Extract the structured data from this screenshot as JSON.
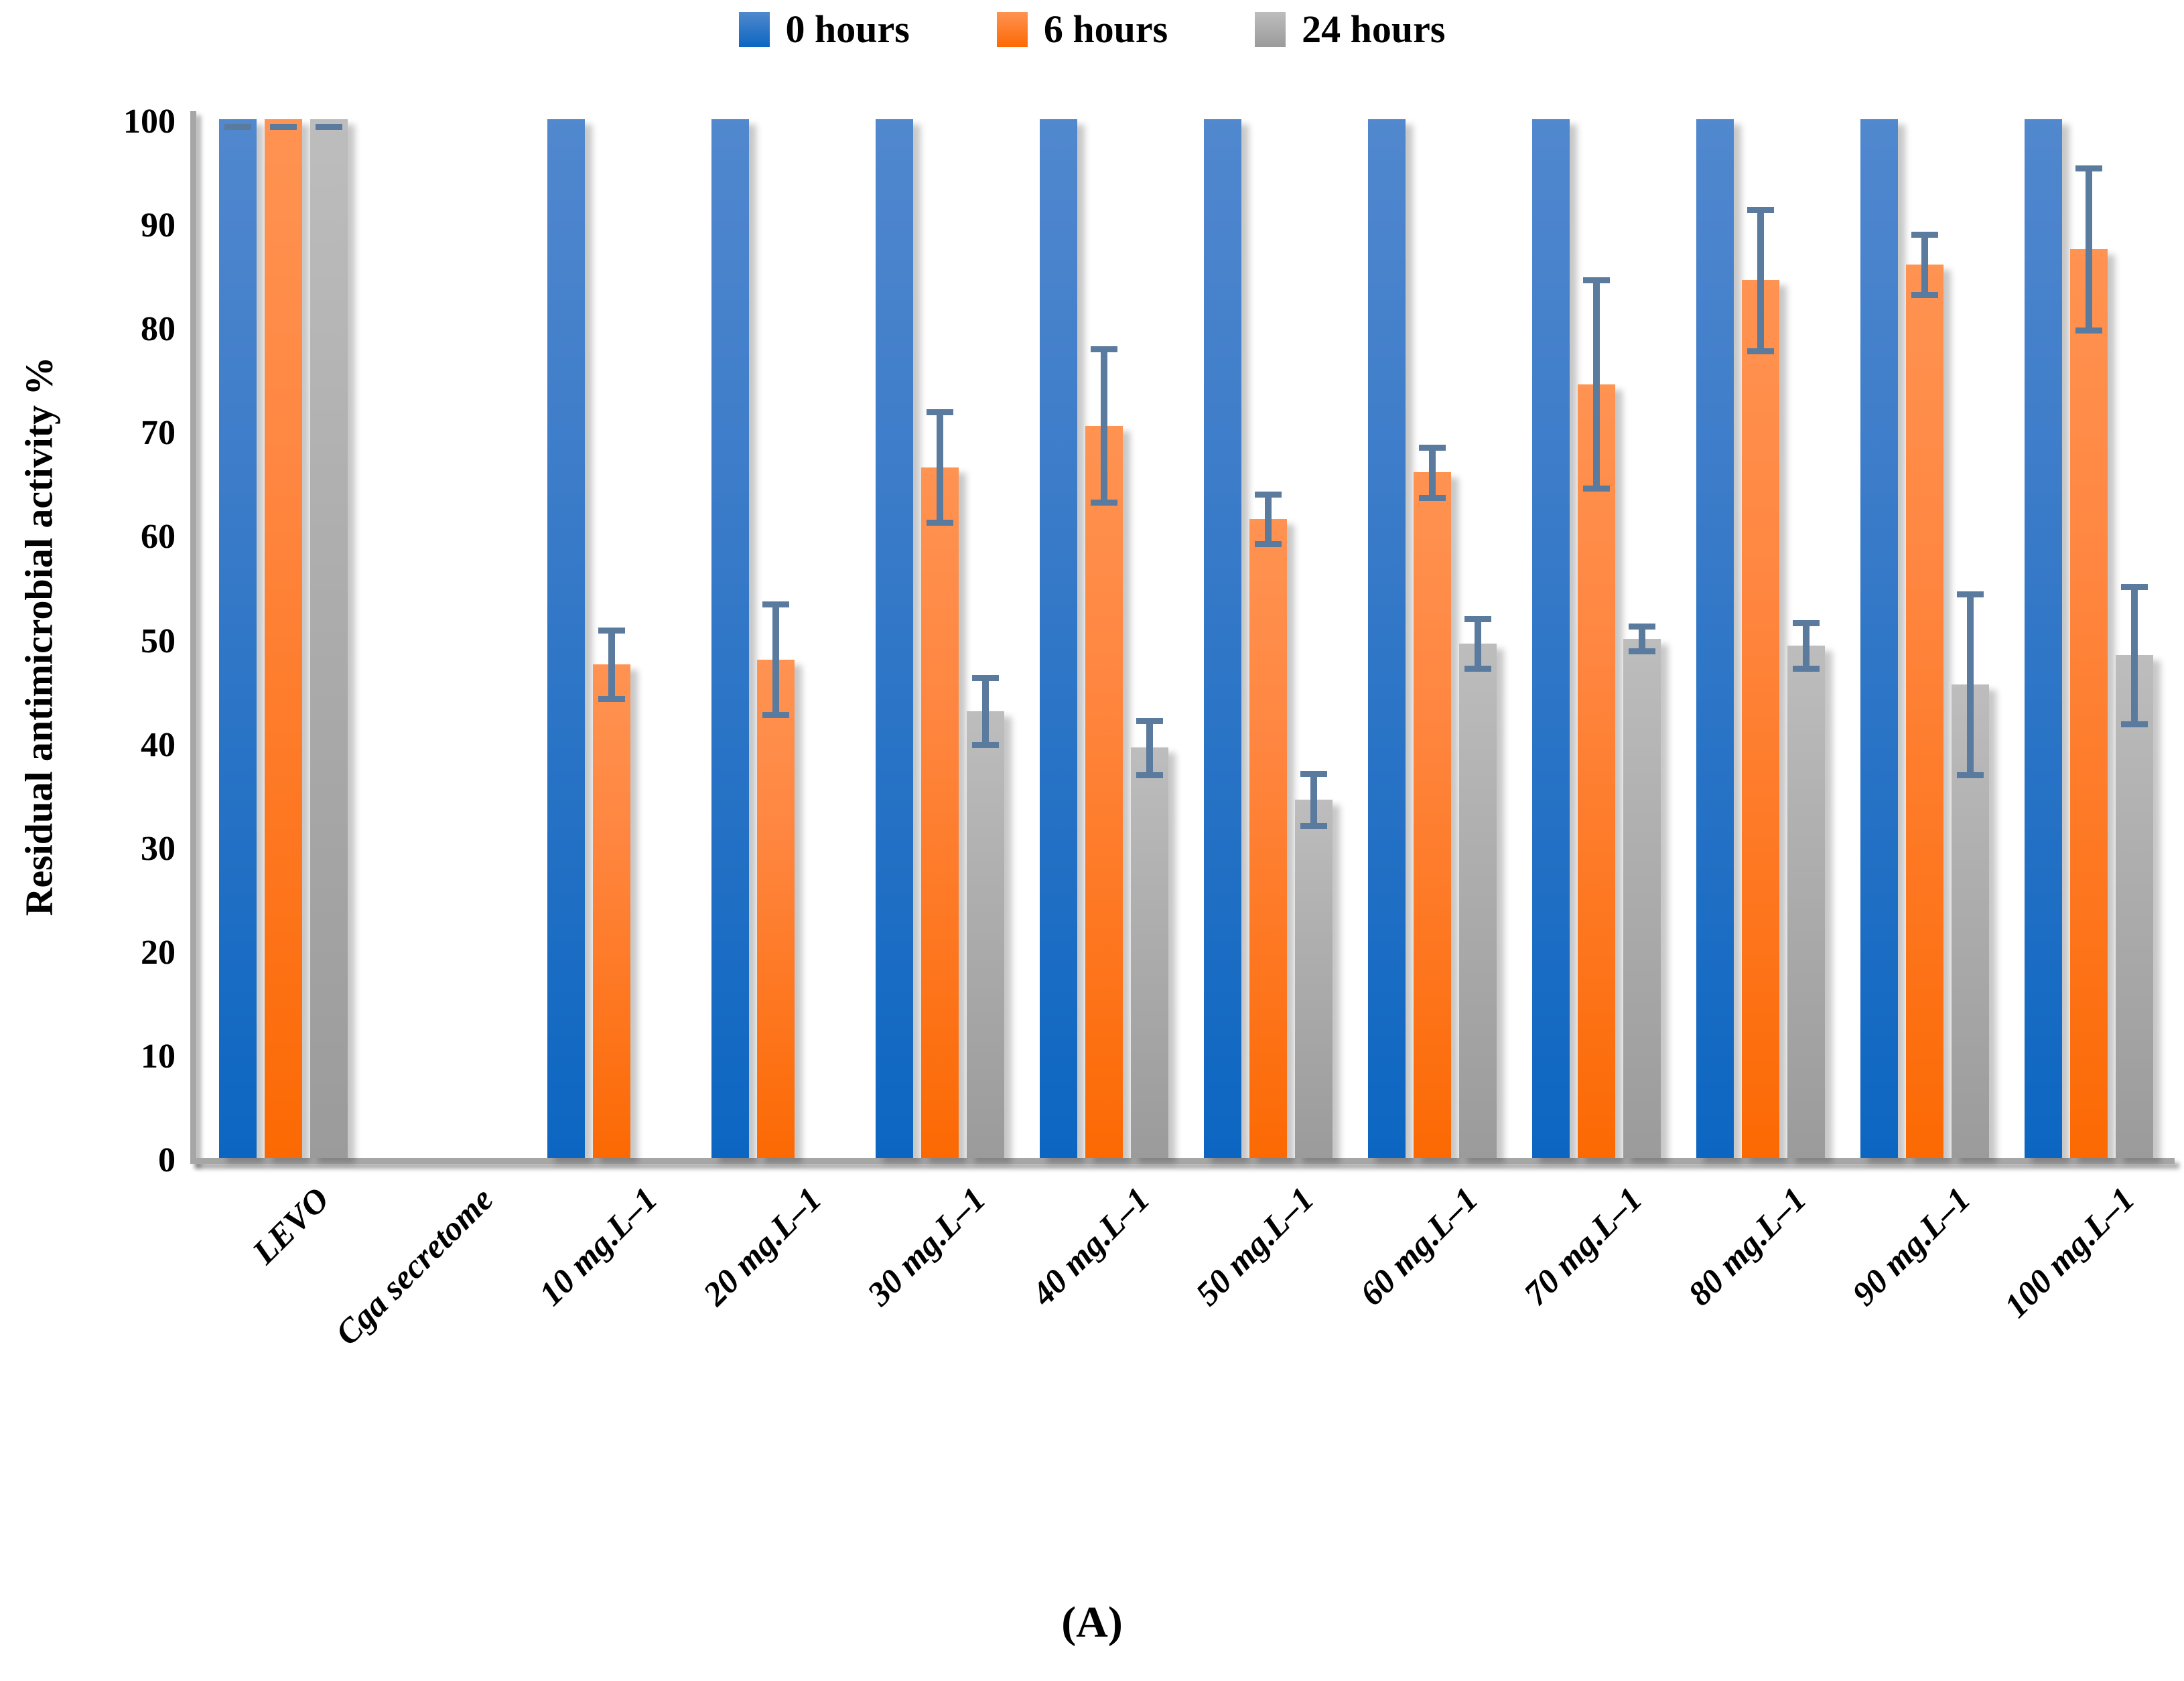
{
  "caption": "(A)",
  "legend": {
    "items": [
      "0 hours",
      "6 hours",
      "24 hours"
    ]
  },
  "chart_data": {
    "type": "bar",
    "title": "",
    "xlabel": "",
    "ylabel": "Residual antimicrobial activity %",
    "ylim": [
      0,
      100
    ],
    "y_ticks": [
      0,
      10,
      20,
      30,
      40,
      50,
      60,
      70,
      80,
      90,
      100
    ],
    "grid": false,
    "legend_position": "top-center",
    "error_bar_color": "#5b7b9e",
    "axis_color": "#a6a6a6",
    "categories": [
      "LEVO",
      "Cga secretome",
      "10 mg.L–1",
      "20 mg.L–1",
      "30 mg.L–1",
      "40 mg.L–1",
      "50 mg.L–1",
      "60 mg.L–1",
      "70 mg.L–1",
      "80 mg.L–1",
      "90 mg.L–1",
      "100 mg.L–1"
    ],
    "series": [
      {
        "name": "0 hours",
        "color": "#1565c0",
        "gradient": [
          "#5188ce",
          "#0c66c1"
        ],
        "values": [
          100,
          null,
          100,
          100,
          100,
          100,
          100,
          100,
          100,
          100,
          100,
          100
        ],
        "errors": [
          0,
          null,
          null,
          null,
          null,
          null,
          null,
          null,
          null,
          null,
          null,
          null
        ]
      },
      {
        "name": "6 hours",
        "color": "#fb6e0e",
        "gradient": [
          "#ff9352",
          "#fc6903"
        ],
        "values": [
          100,
          null,
          47.5,
          48,
          66.5,
          70.5,
          61.5,
          66,
          74.5,
          84.5,
          86,
          87.5
        ],
        "errors": [
          0,
          null,
          3.3,
          5.3,
          5.3,
          7.4,
          2.4,
          2.4,
          10,
          6.8,
          2.9,
          7.8
        ]
      },
      {
        "name": "24 hours",
        "color": "#a6a6a6",
        "gradient": [
          "#bdbdbd",
          "#9b9b9b"
        ],
        "values": [
          100,
          null,
          null,
          null,
          43,
          39.5,
          34.5,
          49.5,
          50,
          49.3,
          45.6,
          48.4
        ],
        "errors": [
          0,
          null,
          null,
          null,
          3.2,
          2.6,
          2.5,
          2.4,
          1.2,
          2.2,
          8.7,
          6.6
        ]
      }
    ]
  }
}
